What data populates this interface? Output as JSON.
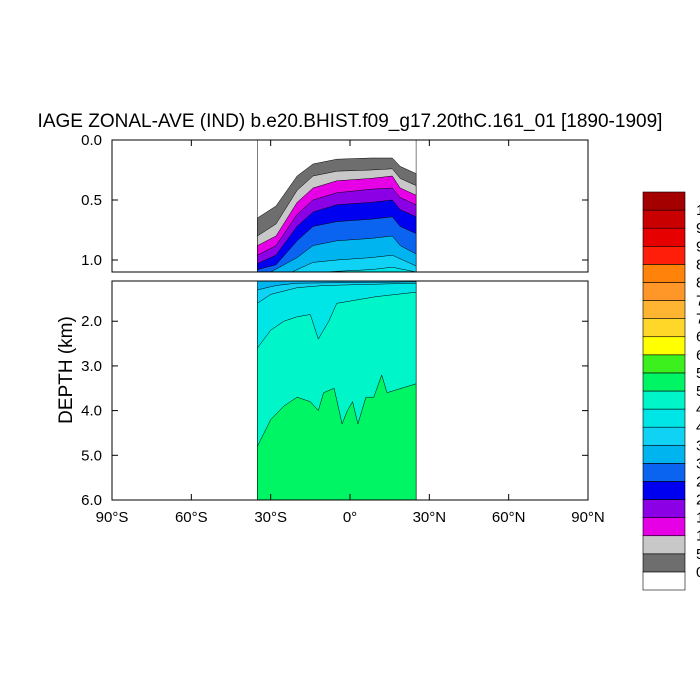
{
  "chart_data": {
    "type": "heatmap",
    "title": "IAGE ZONAL-AVE (IND) b.e20.BHIST.f09_g17.20thC.161_01 [1890-1909]",
    "xlabel": "",
    "ylabel": "DEPTH (km)",
    "xlim": [
      -90,
      90
    ],
    "ylim_upper_km": [
      0.0,
      1.1
    ],
    "ylim_lower_km": [
      1.1,
      6.0
    ],
    "x_ticks": [
      {
        "value": -90,
        "label": "90°S"
      },
      {
        "value": -60,
        "label": "60°S"
      },
      {
        "value": -30,
        "label": "30°S"
      },
      {
        "value": 0,
        "label": "0°"
      },
      {
        "value": 30,
        "label": "30°N"
      },
      {
        "value": 60,
        "label": "60°N"
      },
      {
        "value": 90,
        "label": "90°N"
      }
    ],
    "y_ticks_upper": [
      {
        "value": 0.0,
        "label": "0.0"
      },
      {
        "value": 0.5,
        "label": "0.5"
      },
      {
        "value": 1.0,
        "label": "1.0"
      }
    ],
    "y_ticks_lower": [
      {
        "value": 2.0,
        "label": "2.0"
      },
      {
        "value": 3.0,
        "label": "3.0"
      },
      {
        "value": 4.0,
        "label": "4.0"
      },
      {
        "value": 5.0,
        "label": "5.0"
      },
      {
        "value": 6.0,
        "label": "6.0"
      }
    ],
    "colorbar_colors": [
      "#ffffff",
      "#6e6e6e",
      "#c8c8c8",
      "#e600e6",
      "#8c00e6",
      "#0000f0",
      "#0a64f0",
      "#00b4f0",
      "#10d2f5",
      "#00e6e6",
      "#00f5c8",
      "#00f564",
      "#3cf01e",
      "#ffff00",
      "#ffd728",
      "#ffb432",
      "#ff9628",
      "#ff820a",
      "#ff1e0a",
      "#e60000",
      "#c80000",
      "#a50000"
    ],
    "colorbar_labels": [
      "0",
      "5",
      "1",
      "1",
      "2",
      "2",
      "3",
      "3",
      "4",
      "4",
      "5",
      "5",
      "6",
      "6",
      "7",
      "7",
      "8",
      "8",
      "9",
      "9",
      "1"
    ],
    "depth_fields": {
      "upper": [
        {
          "level": 0,
          "surface": [
            [
              -35,
              0.0
            ],
            [
              25,
              0.0
            ]
          ]
        },
        {
          "level": 1,
          "surface": [
            [
              -35,
              0.65
            ],
            [
              -28,
              0.55
            ],
            [
              -20,
              0.3
            ],
            [
              -14,
              0.2
            ],
            [
              -5,
              0.16
            ],
            [
              8,
              0.15
            ],
            [
              16,
              0.15
            ],
            [
              19,
              0.22
            ],
            [
              25,
              0.28
            ]
          ]
        },
        {
          "level": 2,
          "surface": [
            [
              -35,
              0.8
            ],
            [
              -28,
              0.7
            ],
            [
              -20,
              0.42
            ],
            [
              -14,
              0.3
            ],
            [
              -5,
              0.26
            ],
            [
              8,
              0.25
            ],
            [
              16,
              0.24
            ],
            [
              19,
              0.32
            ],
            [
              25,
              0.38
            ]
          ]
        },
        {
          "level": 3,
          "surface": [
            [
              -35,
              0.88
            ],
            [
              -28,
              0.8
            ],
            [
              -20,
              0.52
            ],
            [
              -14,
              0.4
            ],
            [
              -5,
              0.34
            ],
            [
              8,
              0.32
            ],
            [
              16,
              0.3
            ],
            [
              19,
              0.4
            ],
            [
              25,
              0.46
            ]
          ]
        },
        {
          "level": 4,
          "surface": [
            [
              -35,
              0.96
            ],
            [
              -28,
              0.88
            ],
            [
              -20,
              0.62
            ],
            [
              -14,
              0.5
            ],
            [
              -5,
              0.44
            ],
            [
              8,
              0.41
            ],
            [
              16,
              0.4
            ],
            [
              19,
              0.48
            ],
            [
              25,
              0.54
            ]
          ]
        },
        {
          "level": 5,
          "surface": [
            [
              -35,
              1.03
            ],
            [
              -28,
              0.96
            ],
            [
              -20,
              0.72
            ],
            [
              -14,
              0.6
            ],
            [
              -5,
              0.54
            ],
            [
              8,
              0.52
            ],
            [
              16,
              0.5
            ],
            [
              19,
              0.58
            ],
            [
              25,
              0.64
            ]
          ]
        },
        {
          "level": 6,
          "surface": [
            [
              -35,
              1.08
            ],
            [
              -28,
              1.04
            ],
            [
              -20,
              0.84
            ],
            [
              -14,
              0.72
            ],
            [
              -5,
              0.68
            ],
            [
              8,
              0.66
            ],
            [
              16,
              0.64
            ],
            [
              19,
              0.72
            ],
            [
              25,
              0.78
            ]
          ]
        },
        {
          "level": 7,
          "surface": [
            [
              -30,
              1.1
            ],
            [
              -20,
              0.98
            ],
            [
              -14,
              0.88
            ],
            [
              -5,
              0.84
            ],
            [
              8,
              0.82
            ],
            [
              16,
              0.8
            ],
            [
              19,
              0.88
            ],
            [
              25,
              0.95
            ]
          ]
        },
        {
          "level": 8,
          "surface": [
            [
              -22,
              1.1
            ],
            [
              -14,
              1.02
            ],
            [
              -5,
              1.0
            ],
            [
              8,
              0.98
            ],
            [
              16,
              0.96
            ],
            [
              25,
              1.05
            ]
          ]
        },
        {
          "level": 9,
          "surface": [
            [
              -10,
              1.1
            ],
            [
              8,
              1.08
            ],
            [
              16,
              1.06
            ],
            [
              25,
              1.1
            ]
          ]
        }
      ],
      "lower": [
        {
          "level": 7,
          "surface": [
            [
              -35,
              1.1
            ],
            [
              25,
              1.1
            ]
          ]
        },
        {
          "level": 8,
          "surface": [
            [
              -35,
              1.3
            ],
            [
              -28,
              1.2
            ],
            [
              -20,
              1.15
            ],
            [
              25,
              1.12
            ]
          ]
        },
        {
          "level": 9,
          "surface": [
            [
              -35,
              1.6
            ],
            [
              -30,
              1.4
            ],
            [
              -20,
              1.25
            ],
            [
              -10,
              1.2
            ],
            [
              25,
              1.15
            ]
          ]
        },
        {
          "level": 10,
          "surface": [
            [
              -35,
              2.6
            ],
            [
              -30,
              2.2
            ],
            [
              -25,
              2.0
            ],
            [
              -20,
              1.9
            ],
            [
              -15,
              1.85
            ],
            [
              -12,
              2.4
            ],
            [
              -8,
              2.0
            ],
            [
              -5,
              1.6
            ],
            [
              0,
              1.55
            ],
            [
              10,
              1.45
            ],
            [
              25,
              1.35
            ]
          ]
        },
        {
          "level": 11,
          "surface": [
            [
              -35,
              4.8
            ],
            [
              -30,
              4.2
            ],
            [
              -25,
              3.9
            ],
            [
              -20,
              3.7
            ],
            [
              -15,
              3.8
            ],
            [
              -12,
              4.0
            ],
            [
              -10,
              3.6
            ],
            [
              -6,
              3.5
            ],
            [
              -3,
              4.3
            ],
            [
              -1,
              4.0
            ],
            [
              1,
              3.8
            ],
            [
              3,
              4.3
            ],
            [
              6,
              3.7
            ],
            [
              9,
              3.7
            ],
            [
              12,
              3.2
            ],
            [
              14,
              3.6
            ],
            [
              25,
              3.4
            ]
          ]
        }
      ]
    }
  }
}
